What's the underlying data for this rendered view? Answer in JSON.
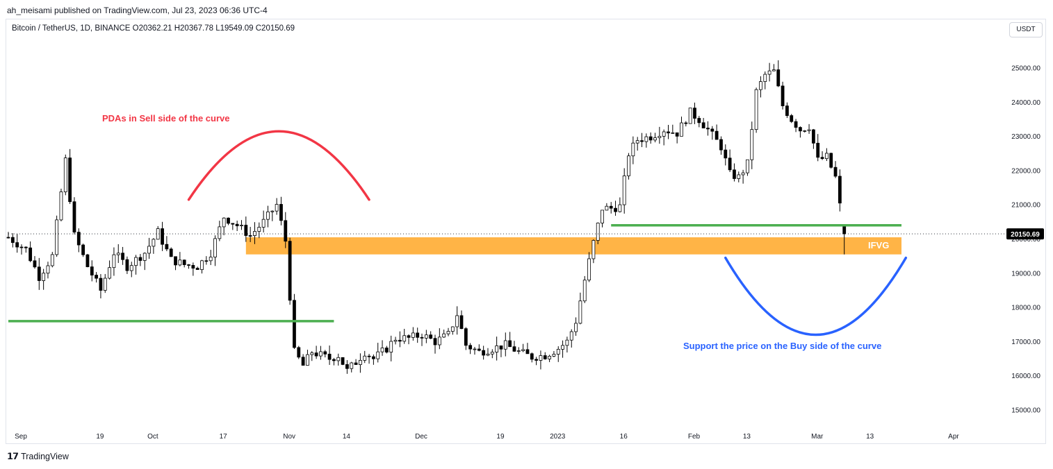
{
  "header": {
    "published": "ah_meisami published on TradingView.com, Jul 23, 2023 06:36 UTC-4",
    "legend": "Bitcoin / TetherUS, 1D, BINANCE  O20362.21  H20367.78  L19549.09  C20150.69",
    "currency": "USDT"
  },
  "footer": {
    "brand": "TradingView",
    "logo_icon": "tradingview-logo-icon"
  },
  "chart_data": {
    "type": "candlestick",
    "symbol": "Bitcoin / TetherUS",
    "interval": "1D",
    "exchange": "BINANCE",
    "last_ohlc": {
      "open": 20362.21,
      "high": 20367.78,
      "low": 19549.09,
      "close": 20150.69
    },
    "last_price_label": "20150.69",
    "y_ticks": [
      "25000.00",
      "24000.00",
      "23000.00",
      "22000.00",
      "21000.00",
      "20000.00",
      "19000.00",
      "18000.00",
      "17000.00",
      "16000.00",
      "15000.00"
    ],
    "ylim": [
      14400,
      26000
    ],
    "x_ticks": [
      {
        "label": "Sep",
        "day": 0
      },
      {
        "label": "19",
        "day": 18
      },
      {
        "label": "Oct",
        "day": 30
      },
      {
        "label": "17",
        "day": 46
      },
      {
        "label": "Nov",
        "day": 61
      },
      {
        "label": "14",
        "day": 74
      },
      {
        "label": "Dec",
        "day": 91
      },
      {
        "label": "19",
        "day": 109
      },
      {
        "label": "2023",
        "day": 122
      },
      {
        "label": "16",
        "day": 137
      },
      {
        "label": "Feb",
        "day": 153
      },
      {
        "label": "13",
        "day": 165
      },
      {
        "label": "Mar",
        "day": 181
      },
      {
        "label": "13",
        "day": 193
      },
      {
        "label": "Apr",
        "day": 212
      }
    ],
    "price_path": [
      [
        0,
        20050
      ],
      [
        4,
        19700
      ],
      [
        7,
        18900
      ],
      [
        10,
        19500
      ],
      [
        13,
        22300
      ],
      [
        15,
        20100
      ],
      [
        18,
        19200
      ],
      [
        21,
        18500
      ],
      [
        24,
        19600
      ],
      [
        27,
        19200
      ],
      [
        31,
        19600
      ],
      [
        34,
        20200
      ],
      [
        37,
        19400
      ],
      [
        40,
        19250
      ],
      [
        43,
        19200
      ],
      [
        46,
        19600
      ],
      [
        49,
        20650
      ],
      [
        52,
        20400
      ],
      [
        55,
        20100
      ],
      [
        58,
        20500
      ],
      [
        61,
        21000
      ],
      [
        63,
        19950
      ],
      [
        65,
        16700
      ],
      [
        67,
        16300
      ],
      [
        69,
        16700
      ],
      [
        71,
        16600
      ],
      [
        73,
        16500
      ],
      [
        75,
        16600
      ],
      [
        77,
        16150
      ],
      [
        79,
        16400
      ],
      [
        81,
        16700
      ],
      [
        83,
        16500
      ],
      [
        86,
        16800
      ],
      [
        88,
        17100
      ],
      [
        91,
        17100
      ],
      [
        94,
        17200
      ],
      [
        97,
        17000
      ],
      [
        100,
        17200
      ],
      [
        102,
        17800
      ],
      [
        104,
        16900
      ],
      [
        107,
        16700
      ],
      [
        110,
        16800
      ],
      [
        113,
        16900
      ],
      [
        116,
        16700
      ],
      [
        119,
        16550
      ],
      [
        122,
        16600
      ],
      [
        125,
        16800
      ],
      [
        127,
        17000
      ],
      [
        129,
        17600
      ],
      [
        131,
        18800
      ],
      [
        133,
        19900
      ],
      [
        135,
        20900
      ],
      [
        137,
        20900
      ],
      [
        139,
        20950
      ],
      [
        141,
        22500
      ],
      [
        143,
        22900
      ],
      [
        146,
        23000
      ],
      [
        149,
        23200
      ],
      [
        152,
        23100
      ],
      [
        155,
        23700
      ],
      [
        157,
        23500
      ],
      [
        159,
        23200
      ],
      [
        162,
        22700
      ],
      [
        164,
        21900
      ],
      [
        166,
        21800
      ],
      [
        168,
        22200
      ],
      [
        170,
        24300
      ],
      [
        172,
        24800
      ],
      [
        174,
        24900
      ],
      [
        176,
        23900
      ],
      [
        178,
        23500
      ],
      [
        180,
        23200
      ],
      [
        182,
        23300
      ],
      [
        184,
        22300
      ],
      [
        186,
        22400
      ],
      [
        188,
        21800
      ],
      [
        190,
        20150
      ]
    ],
    "zones": [
      {
        "name": "IFVG",
        "y_low": 19550,
        "y_high": 20050,
        "color": "#ffa726",
        "x_start_day": 54,
        "x_end_day": 203
      }
    ],
    "levels": [
      {
        "y": 17600,
        "x_start_day": 0,
        "x_end_day": 74,
        "color": "#4caf50"
      },
      {
        "y": 20400,
        "x_start_day": 137,
        "x_end_day": 203,
        "color": "#4caf50"
      }
    ],
    "curves": [
      {
        "kind": "sell-arch",
        "color": "#f23645",
        "x_start_day": 41,
        "x_end_day": 82,
        "y_end": 21150,
        "y_peak": 23150
      },
      {
        "kind": "buy-bowl",
        "color": "#2962ff",
        "x_start_day": 163,
        "x_end_day": 204,
        "y_end": 19450,
        "y_trough": 17200
      }
    ],
    "annotations": [
      {
        "text": "PDAs in Sell side of the curve",
        "color": "#f23645"
      },
      {
        "text": "Support the price on the Buy side of the curve",
        "color": "#2962ff"
      },
      {
        "text": "IFVG",
        "color": "#ffffff"
      }
    ],
    "colors": {
      "up": "#ffffff",
      "down": "#000000",
      "wick": "#000000",
      "last_price_bg": "#000000"
    }
  }
}
